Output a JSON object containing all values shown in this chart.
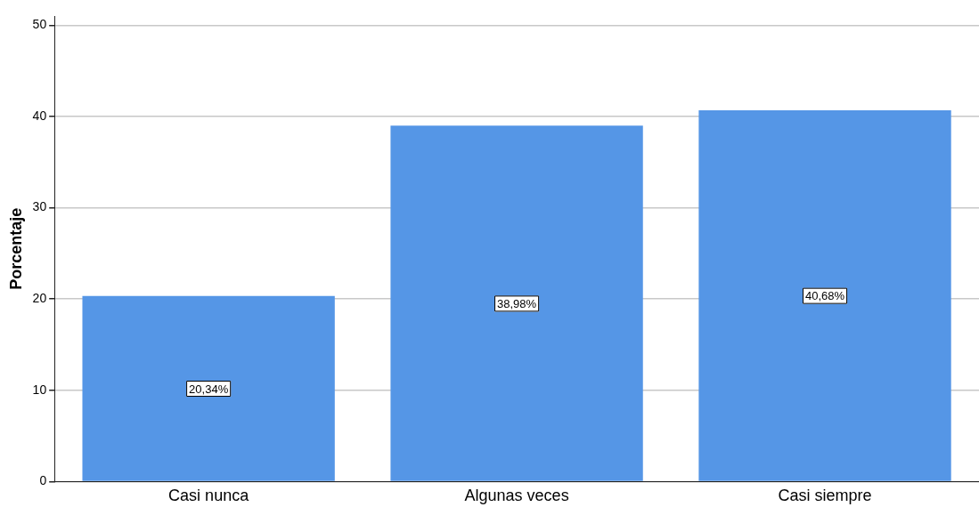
{
  "chart_data": {
    "type": "bar",
    "ylabel": "Porcentaje",
    "categories": [
      "Casi nunca",
      "Algunas veces",
      "Casi siempre"
    ],
    "values": [
      20.34,
      38.98,
      40.68
    ],
    "color": "#5596e6",
    "value_labels": [
      "20,34%",
      "38,98%",
      "40,68%"
    ],
    "ylim": [
      0,
      51
    ],
    "yticks": [
      0,
      10,
      20,
      30,
      40,
      50
    ],
    "grid": "y",
    "legend": false
  }
}
